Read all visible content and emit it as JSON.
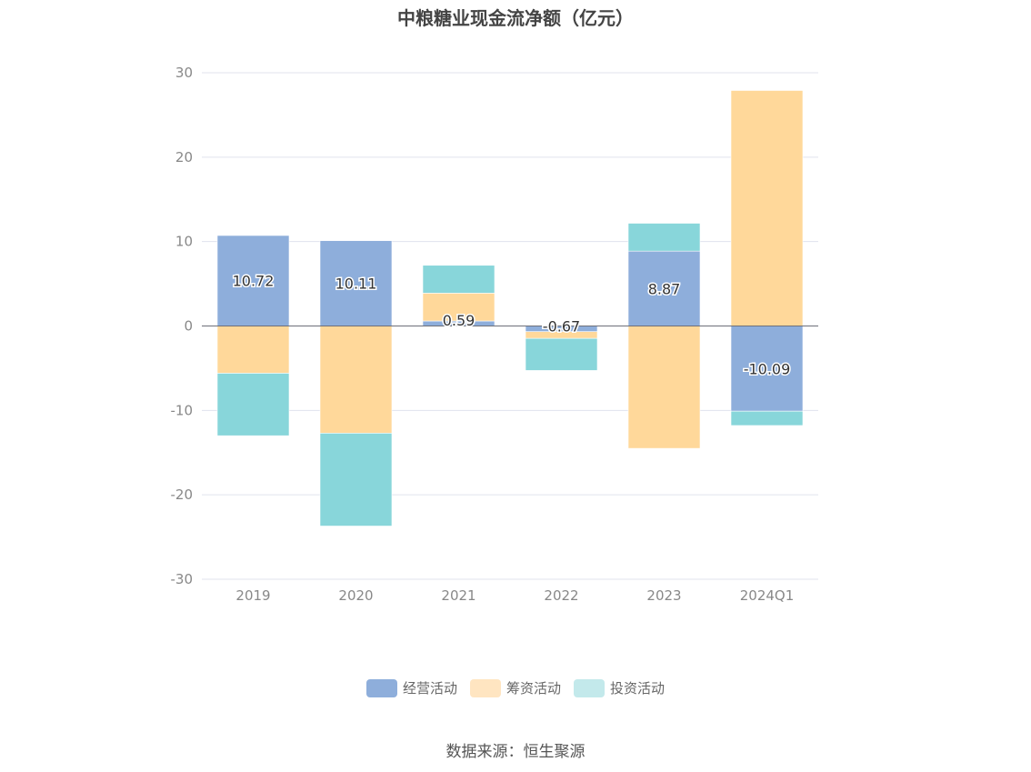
{
  "chart_data": {
    "type": "bar",
    "stacked": true,
    "title": "中粮糖业现金流净额（亿元）",
    "categories": [
      "2019",
      "2020",
      "2021",
      "2022",
      "2023",
      "2024Q1"
    ],
    "series": [
      {
        "name": "经营活动",
        "color": "#8eaedb",
        "values": [
          10.72,
          10.11,
          0.59,
          -0.67,
          8.87,
          -10.09
        ]
      },
      {
        "name": "筹资活动",
        "color": "#ffd89a",
        "values": [
          -5.6,
          -12.7,
          3.3,
          -0.8,
          -14.5,
          27.9
        ]
      },
      {
        "name": "投资活动",
        "color": "#88d6da",
        "values": [
          -7.4,
          -11.0,
          3.3,
          -3.8,
          3.3,
          -1.7
        ]
      }
    ],
    "data_labels": [
      "10.72",
      "10.11",
      "0.59",
      "-0.67",
      "8.87",
      "-10.09"
    ],
    "ylim": [
      -30,
      30
    ],
    "yticks": [
      "30",
      "20",
      "10",
      "0",
      "-10",
      "-20",
      "-30"
    ],
    "ytick_values": [
      30,
      20,
      10,
      0,
      -10,
      -20,
      -30
    ],
    "grid": true,
    "legend_position": "bottom"
  },
  "legend_colors": [
    "#8eaedb",
    "#ffe5c1",
    "#c3e9eb"
  ],
  "source_note": "数据来源：恒生聚源"
}
